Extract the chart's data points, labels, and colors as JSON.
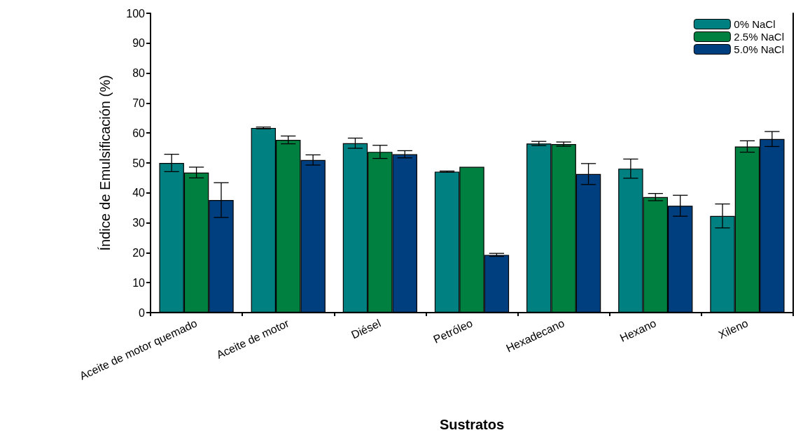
{
  "chart_data": {
    "type": "bar",
    "xlabel": "Sustratos",
    "ylabel": "Índice de Emulsificación (%)",
    "categories": [
      "Aceite de motor quemado",
      "Aceite de motor",
      "Diésel",
      "Petróleo",
      "Hexadecano",
      "Hexano",
      "Xileno"
    ],
    "series": [
      {
        "name": "0% NaCl",
        "color": "#008080",
        "values": [
          50.0,
          61.7,
          56.6,
          47.1,
          56.5,
          48.1,
          32.3
        ],
        "errors": [
          2.9,
          0.3,
          1.7,
          0.2,
          0.7,
          3.2,
          4.0
        ]
      },
      {
        "name": "2.5% NaCl",
        "color": "#008040",
        "values": [
          46.8,
          57.7,
          53.7,
          48.7,
          56.3,
          38.6,
          55.5
        ],
        "errors": [
          1.8,
          1.3,
          2.2,
          null,
          0.7,
          1.2,
          1.9
        ]
      },
      {
        "name": "5.0% NaCl",
        "color": "#003f7f",
        "values": [
          37.6,
          51.0,
          52.9,
          19.3,
          46.3,
          35.7,
          58.0
        ],
        "errors": [
          5.8,
          1.7,
          1.2,
          0.5,
          3.5,
          3.5,
          2.5
        ]
      }
    ],
    "ylim": [
      0,
      100
    ],
    "yticks": [
      0,
      10,
      20,
      30,
      40,
      50,
      60,
      70,
      80,
      90,
      100
    ],
    "grid": false,
    "legend": "top right"
  }
}
